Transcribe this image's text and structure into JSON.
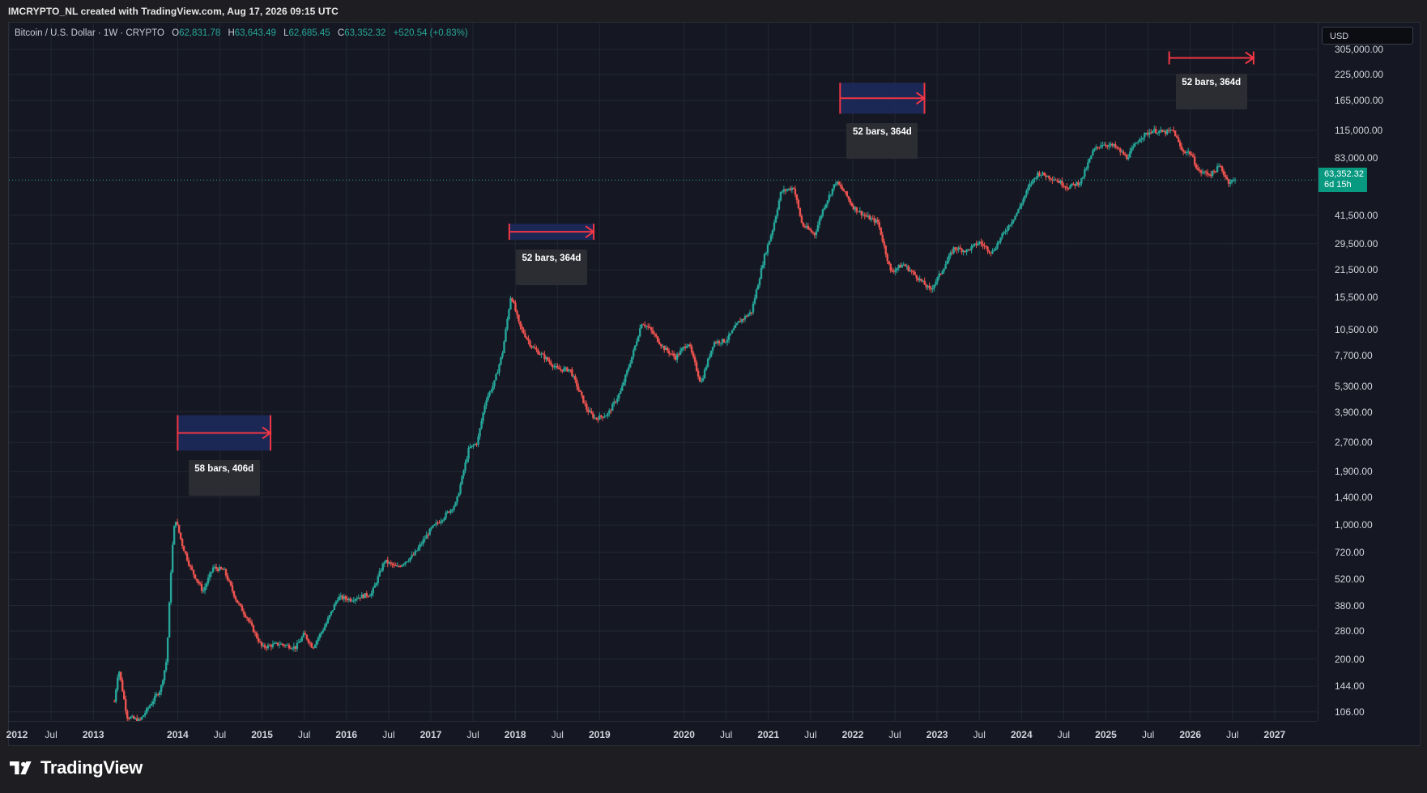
{
  "header": {
    "credit": "IMCRYPTO_NL created with TradingView.com, Aug 17, 2026 09:15 UTC"
  },
  "legend": {
    "symbol": "Bitcoin / U.S. Dollar · 1W · CRYPTO",
    "open_label": "O",
    "open": "62,831.78",
    "high_label": "H",
    "high": "63,643.49",
    "low_label": "L",
    "low": "62,685.45",
    "close_label": "C",
    "close": "63,352.32",
    "change": "+520.54 (+0.83%)"
  },
  "currency_button": "USD",
  "last_price": {
    "value": "63,352.32",
    "countdown": "6d 15h",
    "price": 63352.32
  },
  "footer": {
    "logo_text": "TradingView"
  },
  "colors": {
    "up": "#26a69a",
    "down": "#ef5350",
    "background": "#151822",
    "range_fill": "#1c2a5e",
    "range_line": "#f23645",
    "price_tag": "#089981"
  },
  "chart_data": {
    "type": "candlestick",
    "title": "Bitcoin / U.S. Dollar · 1W · CRYPTO",
    "y_scale": "log",
    "ylim": [
      95,
      420000
    ],
    "y_ticks": [
      "305,000.00",
      "225,000.00",
      "165,000.00",
      "115,000.00",
      "83,000.00",
      "41,500.00",
      "29,500.00",
      "21,500.00",
      "15,500.00",
      "10,500.00",
      "7,700.00",
      "5,300.00",
      "3,900.00",
      "2,700.00",
      "1,900.00",
      "1,400.00",
      "1,000.00",
      "720.00",
      "520.00",
      "380.00",
      "280.00",
      "200.00",
      "144.00",
      "106.00"
    ],
    "y_tick_values": [
      305000,
      225000,
      165000,
      115000,
      83000,
      41500,
      29500,
      21500,
      15500,
      10500,
      7700,
      5300,
      3900,
      2700,
      1900,
      1400,
      1000,
      720,
      520,
      380,
      280,
      200,
      144,
      106
    ],
    "xlim": [
      2012.0,
      2027.5
    ],
    "x_ticks": [
      {
        "label": "2012",
        "x": 2012.0,
        "year": true
      },
      {
        "label": "Jul",
        "x": 2012.5,
        "year": false
      },
      {
        "label": "2013",
        "x": 2013.0,
        "year": true
      },
      {
        "label": "2014",
        "x": 2014.0,
        "year": true
      },
      {
        "label": "Jul",
        "x": 2014.5,
        "year": false
      },
      {
        "label": "2015",
        "x": 2015.0,
        "year": true
      },
      {
        "label": "Jul",
        "x": 2015.5,
        "year": false
      },
      {
        "label": "2016",
        "x": 2016.0,
        "year": true
      },
      {
        "label": "Jul",
        "x": 2016.5,
        "year": false
      },
      {
        "label": "2017",
        "x": 2017.0,
        "year": true
      },
      {
        "label": "Jul",
        "x": 2017.5,
        "year": false
      },
      {
        "label": "2018",
        "x": 2018.0,
        "year": true
      },
      {
        "label": "Jul",
        "x": 2018.5,
        "year": false
      },
      {
        "label": "2019",
        "x": 2019.0,
        "year": true
      },
      {
        "label": "2020",
        "x": 2020.0,
        "year": true
      },
      {
        "label": "Jul",
        "x": 2020.5,
        "year": false
      },
      {
        "label": "2021",
        "x": 2021.0,
        "year": true
      },
      {
        "label": "Jul",
        "x": 2021.5,
        "year": false
      },
      {
        "label": "2022",
        "x": 2022.0,
        "year": true
      },
      {
        "label": "Jul",
        "x": 2022.5,
        "year": false
      },
      {
        "label": "2023",
        "x": 2023.0,
        "year": true
      },
      {
        "label": "Jul",
        "x": 2023.5,
        "year": false
      },
      {
        "label": "2024",
        "x": 2024.0,
        "year": true
      },
      {
        "label": "Jul",
        "x": 2024.5,
        "year": false
      },
      {
        "label": "2025",
        "x": 2025.0,
        "year": true
      },
      {
        "label": "Jul",
        "x": 2025.5,
        "year": false
      },
      {
        "label": "2026",
        "x": 2026.0,
        "year": true
      },
      {
        "label": "Jul",
        "x": 2026.5,
        "year": false
      },
      {
        "label": "2027",
        "x": 2027.0,
        "year": true
      }
    ],
    "price_path": [
      [
        2013.25,
        120
      ],
      [
        2013.3,
        180
      ],
      [
        2013.4,
        100
      ],
      [
        2013.55,
        95
      ],
      [
        2013.7,
        120
      ],
      [
        2013.8,
        140
      ],
      [
        2013.87,
        200
      ],
      [
        2013.93,
        700
      ],
      [
        2013.97,
        1100
      ],
      [
        2014.05,
        800
      ],
      [
        2014.15,
        600
      ],
      [
        2014.3,
        450
      ],
      [
        2014.42,
        600
      ],
      [
        2014.55,
        580
      ],
      [
        2014.7,
        400
      ],
      [
        2014.82,
        330
      ],
      [
        2015.0,
        230
      ],
      [
        2015.2,
        240
      ],
      [
        2015.4,
        230
      ],
      [
        2015.5,
        270
      ],
      [
        2015.6,
        230
      ],
      [
        2015.75,
        300
      ],
      [
        2015.9,
        420
      ],
      [
        2016.05,
        410
      ],
      [
        2016.3,
        440
      ],
      [
        2016.45,
        650
      ],
      [
        2016.6,
        600
      ],
      [
        2016.8,
        700
      ],
      [
        2017.0,
        950
      ],
      [
        2017.15,
        1100
      ],
      [
        2017.3,
        1300
      ],
      [
        2017.45,
        2500
      ],
      [
        2017.55,
        2700
      ],
      [
        2017.65,
        4500
      ],
      [
        2017.75,
        5500
      ],
      [
        2017.85,
        8000
      ],
      [
        2017.95,
        16000
      ],
      [
        2018.05,
        11000
      ],
      [
        2018.2,
        8500
      ],
      [
        2018.35,
        7500
      ],
      [
        2018.5,
        6500
      ],
      [
        2018.65,
        6500
      ],
      [
        2018.85,
        4000
      ],
      [
        2018.95,
        3600
      ],
      [
        2019.1,
        3800
      ],
      [
        2019.25,
        5000
      ],
      [
        2019.4,
        8000
      ],
      [
        2019.5,
        11500
      ],
      [
        2019.6,
        10500
      ],
      [
        2019.75,
        8500
      ],
      [
        2019.9,
        7500
      ],
      [
        2020.05,
        9000
      ],
      [
        2020.2,
        5500
      ],
      [
        2020.35,
        9000
      ],
      [
        2020.5,
        9200
      ],
      [
        2020.65,
        11500
      ],
      [
        2020.8,
        13000
      ],
      [
        2020.95,
        25000
      ],
      [
        2021.05,
        35000
      ],
      [
        2021.15,
        55000
      ],
      [
        2021.3,
        58000
      ],
      [
        2021.4,
        37000
      ],
      [
        2021.55,
        33000
      ],
      [
        2021.65,
        45000
      ],
      [
        2021.8,
        62000
      ],
      [
        2021.9,
        55000
      ],
      [
        2022.0,
        46000
      ],
      [
        2022.15,
        41000
      ],
      [
        2022.3,
        38000
      ],
      [
        2022.45,
        21000
      ],
      [
        2022.6,
        23000
      ],
      [
        2022.75,
        20000
      ],
      [
        2022.92,
        16800
      ],
      [
        2023.05,
        21000
      ],
      [
        2023.2,
        28000
      ],
      [
        2023.35,
        27000
      ],
      [
        2023.5,
        30000
      ],
      [
        2023.65,
        26500
      ],
      [
        2023.8,
        34000
      ],
      [
        2023.95,
        43000
      ],
      [
        2024.1,
        60000
      ],
      [
        2024.2,
        69000
      ],
      [
        2024.4,
        64000
      ],
      [
        2024.55,
        58000
      ],
      [
        2024.7,
        62000
      ],
      [
        2024.85,
        90000
      ],
      [
        2024.95,
        98000
      ],
      [
        2025.1,
        95000
      ],
      [
        2025.25,
        83000
      ],
      [
        2025.4,
        105000
      ],
      [
        2025.55,
        115000
      ],
      [
        2025.7,
        112000
      ],
      [
        2025.8,
        115000
      ],
      [
        2025.9,
        90000
      ],
      [
        2026.0,
        88000
      ],
      [
        2026.1,
        70000
      ],
      [
        2026.25,
        68000
      ],
      [
        2026.35,
        75000
      ],
      [
        2026.45,
        62000
      ],
      [
        2026.55,
        63352
      ]
    ],
    "ranges": [
      {
        "label": "58 bars, 406d",
        "x0": 2014.0,
        "x1": 2015.1,
        "y_top": 3400,
        "y_bottom": 2700,
        "fill": true
      },
      {
        "label": "52 bars, 364d",
        "x0": 2017.93,
        "x1": 2018.93,
        "y_top": 34000,
        "y_bottom": 34000,
        "fill": true
      },
      {
        "label": "52 bars, 364d",
        "x0": 2021.85,
        "x1": 2022.85,
        "y_top": 185000,
        "y_bottom": 155000,
        "fill": true
      },
      {
        "label": "52 bars, 364d",
        "x0": 2025.75,
        "x1": 2026.75,
        "y_top": 275000,
        "y_bottom": 275000,
        "fill": false
      }
    ]
  }
}
